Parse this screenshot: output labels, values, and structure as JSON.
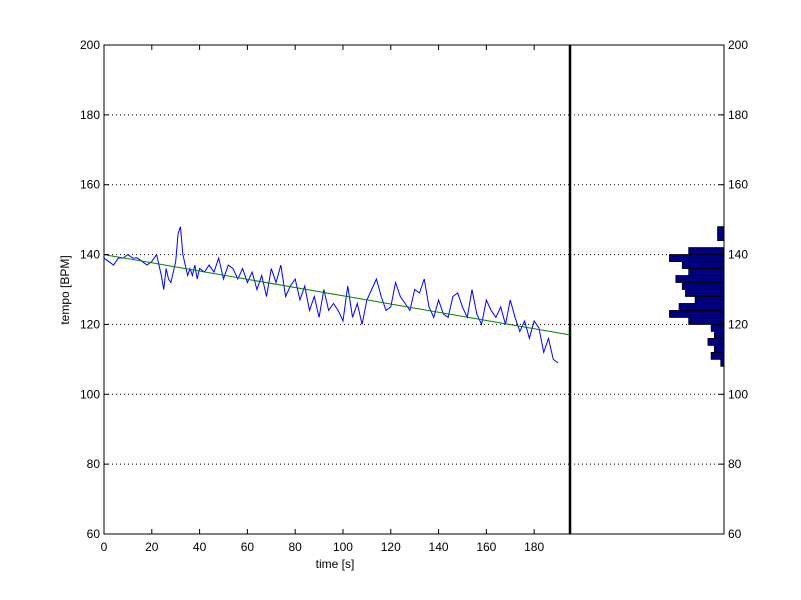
{
  "chart_data": {
    "type": "line",
    "title": "",
    "xlabel": "time [s]",
    "ylabel": "tempo [BPM]",
    "xlim": [
      0,
      195
    ],
    "ylim": [
      60,
      200
    ],
    "xticks": [
      0,
      20,
      40,
      60,
      80,
      100,
      120,
      140,
      160,
      180
    ],
    "yticks": [
      60,
      80,
      100,
      120,
      140,
      160,
      180,
      200
    ],
    "grid": "horizontal dotted",
    "series": [
      {
        "kind": "line",
        "color": "#0000ff",
        "x": [
          0,
          2,
          4,
          6,
          8,
          10,
          12,
          14,
          16,
          18,
          20,
          22,
          24,
          25,
          26,
          27,
          28,
          29,
          30,
          31,
          32,
          33,
          34,
          35,
          36,
          37,
          38,
          39,
          40,
          42,
          44,
          46,
          48,
          50,
          52,
          54,
          56,
          58,
          60,
          62,
          64,
          66,
          68,
          70,
          72,
          74,
          76,
          78,
          80,
          82,
          84,
          86,
          88,
          90,
          92,
          94,
          96,
          98,
          100,
          102,
          104,
          106,
          108,
          110,
          112,
          114,
          116,
          118,
          120,
          122,
          124,
          126,
          128,
          130,
          132,
          134,
          136,
          138,
          140,
          142,
          144,
          146,
          148,
          150,
          152,
          154,
          156,
          158,
          160,
          162,
          164,
          166,
          168,
          170,
          172,
          174,
          176,
          178,
          180,
          182,
          184,
          186,
          188,
          190
        ],
        "y": [
          139,
          138,
          137,
          139,
          139,
          140,
          139,
          139,
          138,
          137,
          138,
          140,
          134,
          130,
          136,
          133,
          132,
          135,
          138,
          146,
          148,
          140,
          137,
          134,
          136,
          134,
          137,
          133,
          136,
          135,
          137,
          135,
          139,
          133,
          137,
          136,
          133,
          136,
          132,
          135,
          130,
          134,
          128,
          136,
          132,
          137,
          128,
          131,
          133,
          127,
          131,
          124,
          128,
          122,
          130,
          124,
          126,
          124,
          121,
          131,
          122,
          126,
          120,
          127,
          130,
          133,
          128,
          124,
          125,
          132,
          128,
          126,
          124,
          130,
          129,
          133,
          125,
          122,
          127,
          123,
          122,
          128,
          129,
          125,
          122,
          130,
          123,
          120,
          127,
          124,
          122,
          125,
          120,
          127,
          122,
          118,
          121,
          116,
          121,
          119,
          112,
          116,
          110,
          109
        ]
      },
      {
        "kind": "trend",
        "color": "#008000",
        "x": [
          0,
          195
        ],
        "y": [
          140,
          117
        ]
      }
    ],
    "histogram": {
      "orientation": "horizontal",
      "color": "#00007f",
      "bin_width": 2,
      "bins": [
        {
          "center": 109,
          "count": 1
        },
        {
          "center": 111,
          "count": 4
        },
        {
          "center": 113,
          "count": 3
        },
        {
          "center": 115,
          "count": 5
        },
        {
          "center": 117,
          "count": 3
        },
        {
          "center": 119,
          "count": 4
        },
        {
          "center": 121,
          "count": 11
        },
        {
          "center": 123,
          "count": 17
        },
        {
          "center": 125,
          "count": 14
        },
        {
          "center": 127,
          "count": 9
        },
        {
          "center": 129,
          "count": 12
        },
        {
          "center": 131,
          "count": 13
        },
        {
          "center": 133,
          "count": 15
        },
        {
          "center": 135,
          "count": 11
        },
        {
          "center": 137,
          "count": 13
        },
        {
          "center": 139,
          "count": 17
        },
        {
          "center": 141,
          "count": 11
        },
        {
          "center": 145,
          "count": 2
        },
        {
          "center": 147,
          "count": 2
        }
      ],
      "count_max": 48
    }
  }
}
